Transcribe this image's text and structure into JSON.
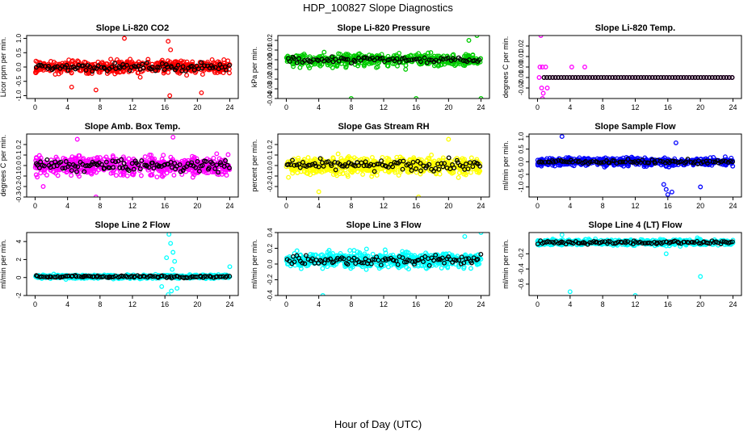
{
  "title": "HDP_100827  Slope Diagnostics",
  "xlabel": "Hour of Day (UTC)",
  "colors": {
    "secondary_points": "#000000"
  },
  "chart_data": [
    {
      "type": "scatter",
      "title": "Slope Li-820 CO2",
      "ylabel": "Licor ppm per min.",
      "color": "#ff0000",
      "xlim": [
        0,
        24
      ],
      "xticks": [
        0,
        4,
        8,
        12,
        16,
        20,
        24
      ],
      "ylim": [
        -1.1,
        1.1
      ],
      "yticks": [
        -1.0,
        -0.5,
        0.0,
        0.5,
        1.0
      ],
      "yticklabels": [
        "-1.0",
        "-0.5",
        "0.0",
        "0.5",
        "1.0"
      ],
      "noise": {
        "center": 0.0,
        "spread": 0.3,
        "points": 520,
        "black_points": 90,
        "black_spread": 0.15
      },
      "outliers": [
        [
          11,
          1.0
        ],
        [
          16.4,
          0.9
        ],
        [
          16.7,
          0.6
        ],
        [
          16.6,
          -1.0
        ],
        [
          7.5,
          -0.8
        ],
        [
          20.5,
          -0.9
        ],
        [
          4.5,
          -0.7
        ]
      ]
    },
    {
      "type": "scatter",
      "title": "Slope Li-820 Pressure",
      "ylabel": "kPa per min.",
      "color": "#00cc00",
      "xlim": [
        0,
        24
      ],
      "xticks": [
        0,
        4,
        8,
        12,
        16,
        20,
        24
      ],
      "ylim": [
        -0.04,
        0.025
      ],
      "yticks": [
        -0.04,
        -0.03,
        -0.02,
        -0.01,
        0.0,
        0.01,
        0.02
      ],
      "yticklabels": [
        "-0.04",
        "-0.03",
        "-0.02",
        "-0.01",
        "0.00",
        "0.01",
        "0.02"
      ],
      "noise": {
        "center": 0.0,
        "spread": 0.008,
        "points": 500,
        "black_points": 80,
        "black_spread": 0.004
      },
      "outliers": [
        [
          8,
          -0.04
        ],
        [
          16,
          -0.04
        ],
        [
          24,
          -0.04
        ],
        [
          23.5,
          0.025
        ],
        [
          22.5,
          0.02
        ]
      ]
    },
    {
      "type": "scatter",
      "title": "Slope Li-820 Temp.",
      "ylabel": "degrees C per min.",
      "color": "#ff00ff",
      "xlim": [
        0,
        24
      ],
      "xticks": [
        0,
        4,
        8,
        12,
        16,
        20,
        24
      ],
      "ylim": [
        -0.03,
        0.03
      ],
      "yticks": [
        -0.02,
        -0.01,
        0.0,
        0.01,
        0.02
      ],
      "yticklabels": [
        "-0.02",
        "-0.01",
        "0.00",
        "0.01",
        "0.02"
      ],
      "flat": {
        "y": -0.01,
        "from": 0.8,
        "to": 24,
        "step": 0.35
      },
      "outliers": [
        [
          0.3,
          0.0
        ],
        [
          0.6,
          0.0
        ],
        [
          1.0,
          0.0
        ],
        [
          0.4,
          0.03
        ],
        [
          0.5,
          -0.02
        ],
        [
          0.7,
          -0.025
        ],
        [
          0.6,
          -0.03
        ],
        [
          4.2,
          0.0
        ],
        [
          5.8,
          0.0
        ],
        [
          0.2,
          -0.01
        ],
        [
          1.2,
          -0.02
        ]
      ]
    },
    {
      "type": "scatter",
      "title": "Slope Amb. Box Temp.",
      "ylabel": "degrees C per min.",
      "color": "#ff00ff",
      "xlim": [
        0,
        24
      ],
      "xticks": [
        0,
        4,
        8,
        12,
        16,
        20,
        24
      ],
      "ylim": [
        -0.3,
        0.3
      ],
      "yticks": [
        -0.3,
        -0.2,
        -0.1,
        0.0,
        0.1,
        0.2
      ],
      "yticklabels": [
        "-0.3",
        "-0.2",
        "-0.1",
        "0.0",
        "0.1",
        "0.2"
      ],
      "noise": {
        "center": 0.0,
        "spread": 0.11,
        "points": 620,
        "black_points": 110,
        "black_spread": 0.07
      },
      "outliers": [
        [
          7.5,
          -0.3
        ],
        [
          5.2,
          0.25
        ],
        [
          17,
          0.27
        ],
        [
          1,
          -0.2
        ]
      ]
    },
    {
      "type": "scatter",
      "title": "Slope Gas Stream RH",
      "ylabel": "percent per min.",
      "color": "#ffff00",
      "xlim": [
        0,
        24
      ],
      "xticks": [
        0,
        4,
        8,
        12,
        16,
        20,
        24
      ],
      "ylim": [
        -0.3,
        0.3
      ],
      "yticks": [
        -0.2,
        -0.1,
        0.0,
        0.1,
        0.2
      ],
      "yticklabels": [
        "-0.2",
        "-0.1",
        "0.0",
        "0.1",
        "0.2"
      ],
      "noise": {
        "center": 0.0,
        "spread": 0.1,
        "points": 620,
        "black_points": 100,
        "black_spread": 0.06
      },
      "outliers": [
        [
          16.3,
          -0.3
        ],
        [
          20,
          0.25
        ],
        [
          4,
          -0.25
        ]
      ]
    },
    {
      "type": "scatter",
      "title": "Slope Sample Flow",
      "ylabel": "ml/min per min.",
      "color": "#0000ff",
      "xlim": [
        0,
        24
      ],
      "xticks": [
        0,
        4,
        8,
        12,
        16,
        20,
        24
      ],
      "ylim": [
        -1.4,
        1.1
      ],
      "yticks": [
        -1.0,
        -0.5,
        0.0,
        0.5,
        1.0
      ],
      "yticklabels": [
        "-1.0",
        "-0.5",
        "0.0",
        "0.5",
        "1.0"
      ],
      "noise": {
        "center": 0.0,
        "spread": 0.2,
        "points": 560,
        "black_points": 90,
        "black_spread": 0.1
      },
      "outliers": [
        [
          16,
          -1.3
        ],
        [
          16.5,
          -1.2
        ],
        [
          15.5,
          -0.9
        ],
        [
          17,
          0.75
        ],
        [
          20,
          -1.0
        ],
        [
          3,
          1.0
        ],
        [
          15.8,
          -1.1
        ]
      ]
    },
    {
      "type": "scatter",
      "title": "Slope Line 2 Flow",
      "ylabel": "ml/min per min.",
      "color": "#00ffff",
      "xlim": [
        0,
        24
      ],
      "xticks": [
        0,
        4,
        8,
        12,
        16,
        20,
        24
      ],
      "ylim": [
        -2,
        5
      ],
      "yticks": [
        -2,
        0,
        2,
        4
      ],
      "yticklabels": [
        "-2",
        "0",
        "2",
        "4"
      ],
      "noise": {
        "center": 0.1,
        "spread": 0.25,
        "points": 560,
        "black_points": 100,
        "black_spread": 0.15
      },
      "outliers": [
        [
          16.5,
          4.8
        ],
        [
          16.7,
          3.8
        ],
        [
          17,
          2.8
        ],
        [
          16.2,
          2.2
        ],
        [
          16.8,
          -1.5
        ],
        [
          16.4,
          -1.9
        ],
        [
          17.5,
          -1.2
        ],
        [
          15.6,
          -1.0
        ],
        [
          17.2,
          1.8
        ],
        [
          16.9,
          0.9
        ],
        [
          24,
          1.2
        ]
      ]
    },
    {
      "type": "scatter",
      "title": "Slope Line 3 Flow",
      "ylabel": "ml/min per min.",
      "color": "#00ffff",
      "xlim": [
        0,
        24
      ],
      "xticks": [
        0,
        4,
        8,
        12,
        16,
        20,
        24
      ],
      "ylim": [
        -0.4,
        0.4
      ],
      "yticks": [
        -0.4,
        -0.2,
        0.0,
        0.2,
        0.4
      ],
      "yticklabels": [
        "-0.4",
        "-0.2",
        "0.0",
        "0.2",
        "0.4"
      ],
      "noise": {
        "center": 0.05,
        "spread": 0.12,
        "points": 620,
        "black_points": 100,
        "black_spread": 0.08
      },
      "outliers": [
        [
          4.5,
          -0.4
        ],
        [
          24,
          0.4
        ],
        [
          22,
          0.35
        ]
      ]
    },
    {
      "type": "scatter",
      "title": "Slope Line 4 (LT) Flow",
      "ylabel": "ml/min per min.",
      "color": "#00ffff",
      "xlim": [
        0,
        24
      ],
      "xticks": [
        0,
        4,
        8,
        12,
        16,
        20,
        24
      ],
      "ylim": [
        -0.75,
        0.08
      ],
      "yticks": [
        -0.6,
        -0.4,
        -0.2
      ],
      "yticklabels": [
        "-0.6",
        "-0.4",
        "-0.2"
      ],
      "noise": {
        "center": -0.05,
        "spread": 0.045,
        "points": 560,
        "black_points": 100,
        "black_spread": 0.03
      },
      "outliers": [
        [
          4,
          -0.7
        ],
        [
          12,
          -0.75
        ],
        [
          20,
          -0.5
        ],
        [
          3,
          0.05
        ],
        [
          15.8,
          -0.2
        ]
      ]
    }
  ]
}
